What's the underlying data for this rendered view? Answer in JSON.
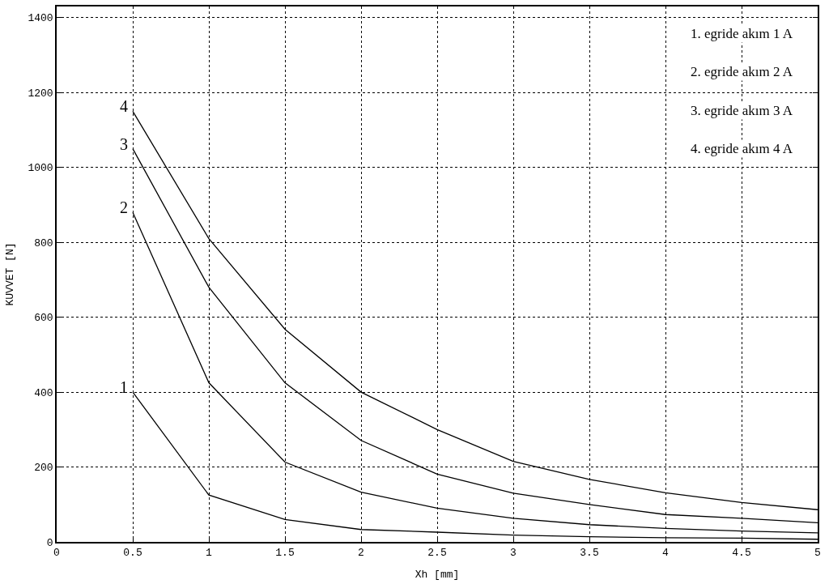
{
  "chart_data": {
    "type": "line",
    "xlabel": "Xh [mm]",
    "ylabel": "KUVVET [N]",
    "x": [
      0.5,
      1,
      1.5,
      2,
      2.5,
      3,
      3.5,
      4,
      4.5,
      5
    ],
    "series": [
      {
        "name": "1",
        "color": "#000000",
        "values": [
          400,
          125,
          60,
          33,
          26,
          18,
          14,
          11,
          10,
          7
        ]
      },
      {
        "name": "2",
        "color": "#000000",
        "values": [
          880,
          425,
          213,
          133,
          90,
          63,
          46,
          36,
          29,
          24
        ]
      },
      {
        "name": "3",
        "color": "#000000",
        "values": [
          1050,
          680,
          425,
          271,
          181,
          130,
          100,
          73,
          63,
          51
        ]
      },
      {
        "name": "4",
        "color": "#000000",
        "values": [
          1150,
          810,
          568,
          400,
          300,
          215,
          167,
          131,
          105,
          86
        ]
      }
    ],
    "xlim": [
      0,
      5
    ],
    "xticks": [
      0,
      0.5,
      1,
      1.5,
      2,
      2.5,
      3,
      3.5,
      4,
      4.5,
      5
    ],
    "ylim": [
      0,
      1430
    ],
    "yticks": [
      0,
      200,
      400,
      600,
      800,
      1000,
      1200,
      1400
    ],
    "grid": true,
    "legend": false,
    "marker": "none",
    "line_style": "solid",
    "annotations": [
      "1. egride akım 1 A",
      "2. egride akım 2 A",
      "3. egride akım 3 A",
      "4. egride akım 4 A"
    ]
  }
}
